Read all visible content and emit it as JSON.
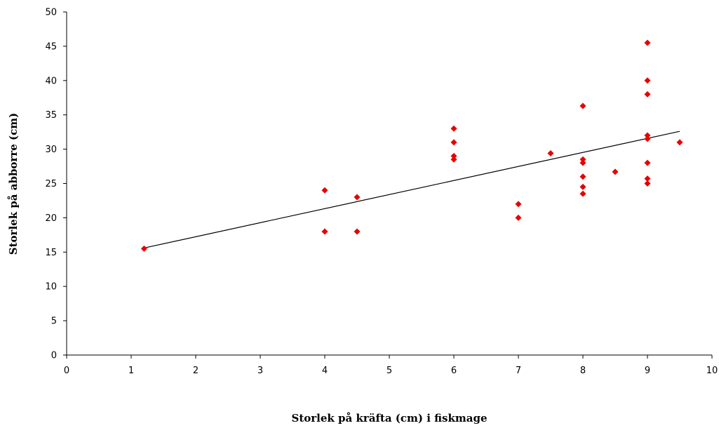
{
  "chart_data": {
    "type": "scatter",
    "title": "",
    "xlabel": "Storlek på kräfta (cm) i  fiskmage",
    "ylabel": "Storlek på abborre (cm)",
    "xlim": [
      0,
      10
    ],
    "ylim": [
      0,
      50
    ],
    "x_ticks": [
      "0",
      "1",
      "2",
      "3",
      "4",
      "5",
      "6",
      "7",
      "8",
      "9",
      "10"
    ],
    "y_ticks": [
      "0",
      "5",
      "10",
      "15",
      "20",
      "25",
      "30",
      "35",
      "40",
      "45",
      "50"
    ],
    "grid": false,
    "legend": false,
    "marker_color": "#e60000",
    "marker_shape": "diamond",
    "trendline": {
      "type": "linear",
      "from": [
        1.2,
        15.6
      ],
      "to": [
        9.5,
        32.6
      ],
      "color": "#000000"
    },
    "points": [
      {
        "x": 1.2,
        "y": 15.5
      },
      {
        "x": 4,
        "y": 24
      },
      {
        "x": 4,
        "y": 18
      },
      {
        "x": 4.5,
        "y": 23
      },
      {
        "x": 4.5,
        "y": 18
      },
      {
        "x": 6,
        "y": 33
      },
      {
        "x": 6,
        "y": 31
      },
      {
        "x": 6,
        "y": 29
      },
      {
        "x": 6,
        "y": 28.5
      },
      {
        "x": 7,
        "y": 22
      },
      {
        "x": 7,
        "y": 20
      },
      {
        "x": 7.5,
        "y": 29.4
      },
      {
        "x": 8,
        "y": 36.3
      },
      {
        "x": 8,
        "y": 28.5
      },
      {
        "x": 8,
        "y": 28
      },
      {
        "x": 8,
        "y": 26
      },
      {
        "x": 8,
        "y": 24.5
      },
      {
        "x": 8,
        "y": 23.5
      },
      {
        "x": 8.5,
        "y": 26.7
      },
      {
        "x": 9,
        "y": 45.5
      },
      {
        "x": 9,
        "y": 40
      },
      {
        "x": 9,
        "y": 38
      },
      {
        "x": 9,
        "y": 32
      },
      {
        "x": 9,
        "y": 31.5
      },
      {
        "x": 9,
        "y": 28
      },
      {
        "x": 9,
        "y": 25.7
      },
      {
        "x": 9,
        "y": 25
      },
      {
        "x": 9.5,
        "y": 31
      }
    ]
  }
}
